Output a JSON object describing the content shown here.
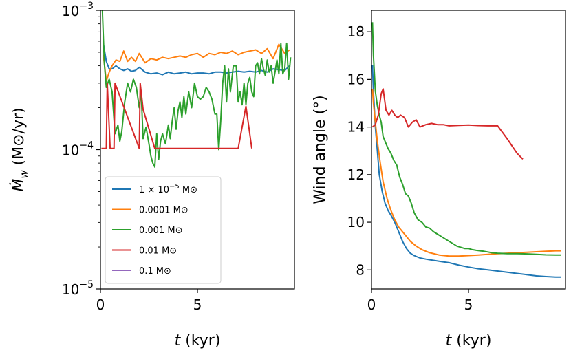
{
  "chart_data": [
    {
      "type": "line",
      "yscale": "log",
      "xlabel_var": "t",
      "xlabel_unit": " (kyr)",
      "ylabel_var": "Ṁ",
      "ylabel_sub": "w",
      "ylabel_unit": " (M⊙/yr)",
      "xlim": [
        0,
        10
      ],
      "ylim": [
        1e-05,
        0.001
      ],
      "x_ticks": [
        0,
        5
      ],
      "x_tick_labels": [
        "0",
        "5"
      ],
      "y_ticks": [
        1e-05,
        0.0001,
        0.001
      ],
      "y_tick_labels": [
        {
          "base": "10",
          "exp": "−5"
        },
        {
          "base": "10",
          "exp": "−4"
        },
        {
          "base": "10",
          "exp": "−3"
        }
      ],
      "legend": {
        "position": "lower-left",
        "entries": [
          {
            "label_pre": "1 × 10",
            "label_sup": "−5",
            "label_post": " M⊙",
            "color": "#1f77b4"
          },
          {
            "label_pre": "0.0001 M⊙",
            "label_sup": "",
            "label_post": "",
            "color": "#ff7f0e"
          },
          {
            "label_pre": "0.001 M⊙",
            "label_sup": "",
            "label_post": "",
            "color": "#2ca02c"
          },
          {
            "label_pre": "0.01 M⊙",
            "label_sup": "",
            "label_post": "",
            "color": "#d62728"
          },
          {
            "label_pre": "0.1 M⊙",
            "label_sup": "",
            "label_post": "",
            "color": "#9467bd"
          }
        ]
      },
      "series": [
        {
          "name": "1e-5 Msun",
          "color": "#1f77b4",
          "x": [
            0.15,
            0.3,
            0.45,
            0.6,
            0.8,
            1.0,
            1.2,
            1.4,
            1.6,
            1.8,
            2.0,
            2.3,
            2.6,
            2.9,
            3.2,
            3.5,
            3.8,
            4.1,
            4.4,
            4.7,
            5.0,
            5.3,
            5.6,
            5.9,
            6.2,
            6.5,
            6.8,
            7.1,
            7.4,
            7.7,
            8.0,
            8.3,
            8.6,
            8.9,
            9.2,
            9.5,
            9.75
          ],
          "y": [
            0.00058,
            0.00043,
            0.00038,
            0.00038,
            0.0004,
            0.00038,
            0.00037,
            0.00038,
            0.000365,
            0.00037,
            0.00039,
            0.00036,
            0.00035,
            0.000355,
            0.000345,
            0.00036,
            0.00035,
            0.000355,
            0.00036,
            0.00035,
            0.000355,
            0.000355,
            0.00035,
            0.00036,
            0.00036,
            0.000355,
            0.00036,
            0.000365,
            0.00036,
            0.000365,
            0.00036,
            0.00037,
            0.00036,
            0.00038,
            0.000375,
            0.00037,
            0.0004
          ]
        },
        {
          "name": "1e-4 Msun",
          "color": "#ff7f0e",
          "x": [
            0.15,
            0.3,
            0.45,
            0.6,
            0.8,
            1.0,
            1.2,
            1.4,
            1.6,
            1.8,
            2.0,
            2.3,
            2.6,
            2.9,
            3.2,
            3.5,
            3.8,
            4.1,
            4.4,
            4.7,
            5.0,
            5.3,
            5.6,
            5.9,
            6.2,
            6.5,
            6.8,
            7.1,
            7.4,
            7.7,
            8.0,
            8.3,
            8.6,
            8.9,
            9.2,
            9.5,
            9.75
          ],
          "y": [
            0.00048,
            0.00031,
            0.00036,
            0.0004,
            0.00044,
            0.00043,
            0.00051,
            0.00043,
            0.00046,
            0.00043,
            0.00049,
            0.00042,
            0.00045,
            0.00044,
            0.00046,
            0.00045,
            0.00046,
            0.00047,
            0.00046,
            0.00048,
            0.00049,
            0.00046,
            0.00049,
            0.00048,
            0.0005,
            0.00049,
            0.00051,
            0.00048,
            0.0005,
            0.00051,
            0.00052,
            0.00049,
            0.00053,
            0.00045,
            0.00057,
            0.00049,
            0.00052
          ]
        },
        {
          "name": "1e-3 Msun",
          "color": "#2ca02c",
          "x": [
            0.1,
            0.2,
            0.3,
            0.45,
            0.6,
            0.75,
            0.9,
            1.0,
            1.1,
            1.25,
            1.4,
            1.55,
            1.7,
            1.85,
            2.0,
            2.1,
            2.2,
            2.35,
            2.5,
            2.6,
            2.7,
            2.8,
            2.9,
            3.0,
            3.1,
            3.2,
            3.35,
            3.5,
            3.6,
            3.7,
            3.8,
            3.9,
            4.0,
            4.1,
            4.2,
            4.3,
            4.4,
            4.55,
            4.7,
            4.85,
            5.0,
            5.15,
            5.3,
            5.45,
            5.6,
            5.75,
            5.9,
            6.0,
            6.1,
            6.2,
            6.3,
            6.4,
            6.5,
            6.6,
            6.7,
            6.85,
            7.0,
            7.1,
            7.2,
            7.3,
            7.4,
            7.5,
            7.6,
            7.7,
            7.8,
            7.9,
            8.0,
            8.1,
            8.2,
            8.3,
            8.4,
            8.5,
            8.6,
            8.7,
            8.8,
            8.9,
            9.0,
            9.1,
            9.2,
            9.3,
            9.4,
            9.5,
            9.6,
            9.7,
            9.8
          ],
          "y": [
            0.001,
            0.00042,
            0.00028,
            0.00032,
            0.00026,
            0.00013,
            0.00015,
            0.000115,
            0.000135,
            0.00022,
            0.0003,
            0.00026,
            0.00032,
            0.00028,
            0.0002,
            0.00026,
            0.00012,
            0.000145,
            0.00011,
            9e-05,
            8e-05,
            7.5e-05,
            0.00013,
            8.5e-05,
            0.000115,
            0.00013,
            0.00011,
            0.00015,
            0.00012,
            0.00016,
            0.0002,
            0.00014,
            0.00019,
            0.00022,
            0.00017,
            0.00024,
            0.00018,
            0.00026,
            0.0002,
            0.0003,
            0.00024,
            0.00023,
            0.00024,
            0.00028,
            0.00026,
            0.00023,
            0.00018,
            0.00018,
            0.0001,
            0.00016,
            0.0003,
            0.0004,
            0.00022,
            0.00038,
            0.00026,
            0.0004,
            0.0004,
            0.00022,
            0.00026,
            0.00021,
            0.0003,
            0.00021,
            0.0003,
            0.00033,
            0.00026,
            0.00024,
            0.0004,
            0.00042,
            0.00035,
            0.00045,
            0.00038,
            0.00034,
            0.00044,
            0.00036,
            0.0004,
            0.0003,
            0.00036,
            0.00044,
            0.00035,
            0.00058,
            0.00035,
            0.00038,
            0.00058,
            0.00032,
            0.00046
          ]
        },
        {
          "name": "1e-2 Msun",
          "color": "#d62728",
          "x": [
            0.05,
            0.3,
            0.35,
            0.5,
            0.7,
            0.75,
            2.0,
            2.05,
            2.2,
            2.8,
            3.0,
            7.1,
            7.5,
            7.8
          ],
          "y": [
            0.000102,
            0.000102,
            0.0003,
            0.000102,
            0.000102,
            0.0003,
            0.000102,
            0.0003,
            0.000195,
            0.000102,
            0.000102,
            0.000102,
            0.000205,
            0.000102
          ]
        }
      ]
    },
    {
      "type": "line",
      "xlabel_var": "t",
      "xlabel_unit": " (kyr)",
      "ylabel": "Wind angle (°)",
      "xlim": [
        0,
        10
      ],
      "ylim": [
        7.2,
        18.9
      ],
      "x_ticks": [
        0,
        5
      ],
      "x_tick_labels": [
        "0",
        "5"
      ],
      "y_ticks": [
        8,
        10,
        12,
        14,
        16,
        18
      ],
      "y_tick_labels": [
        "8",
        "10",
        "12",
        "14",
        "16",
        "18"
      ],
      "series": [
        {
          "name": "1e-5 Msun",
          "color": "#1f77b4",
          "x": [
            0.05,
            0.1,
            0.2,
            0.3,
            0.4,
            0.55,
            0.7,
            0.85,
            1.0,
            1.2,
            1.4,
            1.6,
            1.8,
            2.0,
            2.2,
            2.5,
            2.8,
            3.2,
            3.6,
            4.0,
            4.5,
            5.0,
            5.5,
            6.0,
            6.5,
            7.0,
            7.5,
            8.0,
            8.5,
            9.0,
            9.5,
            9.75
          ],
          "y": [
            16.6,
            15.5,
            14.0,
            13.0,
            12.0,
            11.3,
            10.8,
            10.5,
            10.3,
            10.0,
            9.6,
            9.2,
            8.9,
            8.7,
            8.6,
            8.5,
            8.45,
            8.4,
            8.35,
            8.3,
            8.2,
            8.12,
            8.05,
            8.0,
            7.95,
            7.9,
            7.85,
            7.8,
            7.75,
            7.72,
            7.7,
            7.7
          ]
        },
        {
          "name": "1e-4 Msun",
          "color": "#ff7f0e",
          "x": [
            0.05,
            0.1,
            0.2,
            0.3,
            0.45,
            0.6,
            0.8,
            1.0,
            1.2,
            1.4,
            1.6,
            1.8,
            2.0,
            2.3,
            2.6,
            3.0,
            3.5,
            4.0,
            4.5,
            5.0,
            5.5,
            6.0,
            6.5,
            7.0,
            7.5,
            8.0,
            8.5,
            9.0,
            9.5,
            9.75
          ],
          "y": [
            15.6,
            15.0,
            14.2,
            13.4,
            12.5,
            11.7,
            11.0,
            10.5,
            10.1,
            9.8,
            9.6,
            9.4,
            9.2,
            9.0,
            8.85,
            8.72,
            8.62,
            8.58,
            8.58,
            8.6,
            8.62,
            8.65,
            8.68,
            8.7,
            8.72,
            8.74,
            8.76,
            8.78,
            8.8,
            8.8
          ]
        },
        {
          "name": "1e-3 Msun",
          "color": "#2ca02c",
          "x": [
            0.05,
            0.1,
            0.2,
            0.3,
            0.4,
            0.5,
            0.6,
            0.7,
            0.85,
            1.0,
            1.15,
            1.3,
            1.45,
            1.6,
            1.75,
            1.9,
            2.05,
            2.2,
            2.4,
            2.6,
            2.8,
            3.0,
            3.2,
            3.4,
            3.6,
            3.8,
            4.0,
            4.2,
            4.4,
            4.6,
            4.8,
            5.0,
            5.2,
            5.4,
            5.6,
            5.8,
            6.0,
            6.2,
            6.5,
            7.0,
            7.5,
            8.0,
            8.5,
            9.0,
            9.5,
            9.75
          ],
          "y": [
            18.4,
            17.0,
            15.5,
            14.9,
            14.5,
            14.2,
            13.6,
            13.4,
            13.1,
            12.9,
            12.6,
            12.4,
            11.9,
            11.6,
            11.2,
            11.1,
            10.8,
            10.4,
            10.1,
            10.0,
            9.8,
            9.75,
            9.6,
            9.5,
            9.4,
            9.3,
            9.2,
            9.1,
            9.0,
            8.95,
            8.9,
            8.9,
            8.85,
            8.82,
            8.8,
            8.78,
            8.75,
            8.72,
            8.7,
            8.68,
            8.68,
            8.67,
            8.65,
            8.63,
            8.62,
            8.62
          ]
        },
        {
          "name": "1e-2 Msun",
          "color": "#d62728",
          "x": [
            0.05,
            0.2,
            0.35,
            0.5,
            0.6,
            0.75,
            0.9,
            1.05,
            1.2,
            1.35,
            1.5,
            1.7,
            1.9,
            2.1,
            2.3,
            2.5,
            2.8,
            3.1,
            3.4,
            3.7,
            4.0,
            4.5,
            5.0,
            5.5,
            6.0,
            6.5,
            7.0,
            7.5,
            7.8
          ],
          "y": [
            14.0,
            14.1,
            14.5,
            15.4,
            15.6,
            14.7,
            14.5,
            14.7,
            14.5,
            14.4,
            14.5,
            14.4,
            14.0,
            14.2,
            14.3,
            14.0,
            14.1,
            14.15,
            14.1,
            14.1,
            14.05,
            14.07,
            14.08,
            14.06,
            14.05,
            14.05,
            13.5,
            12.9,
            12.65
          ]
        }
      ]
    }
  ]
}
